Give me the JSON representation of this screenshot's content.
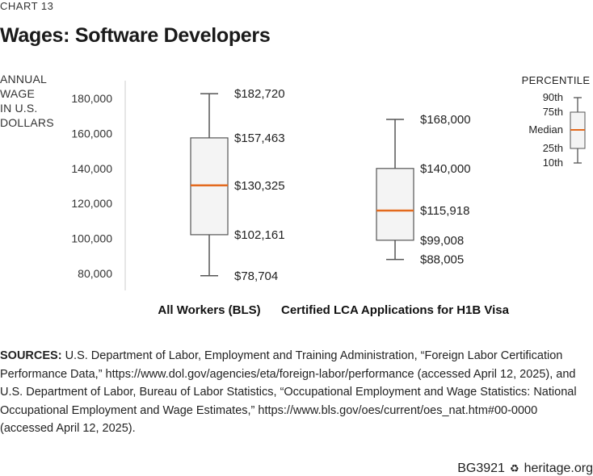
{
  "chart_number": "CHART 13",
  "footer": {
    "report_id": "BG3921",
    "site": "heritage.org",
    "logo_icon": "liberty-bell-icon"
  },
  "sources": {
    "label": "SOURCES:",
    "text": " U.S. Department of Labor, Employment and Training Administration, “Foreign Labor Certification Performance Data,” https://www.dol.gov/agencies/eta/foreign-labor/performance (accessed April 12, 2025), and U.S. Department of Labor, Bureau of Labor Statistics, “Occupational Employment and Wage Statistics: National Occupational Employment and Wage Estimates,” https://www.bls.gov/oes/current/oes_nat.htm#00-0000 (accessed April 12, 2025)."
  },
  "colors": {
    "median": "#e36a1e",
    "box_fill": "#f4f4f4",
    "box_stroke": "#555555",
    "axis": "#cccccc"
  },
  "chart_data": {
    "type": "boxplot",
    "title": "Wages: Software Developers",
    "ylabel_lines": [
      "ANNUAL",
      "WAGE",
      "IN U.S.",
      "DOLLARS"
    ],
    "ylim": [
      75000,
      190000
    ],
    "yticks": [
      80000,
      100000,
      120000,
      140000,
      160000,
      180000
    ],
    "ytick_labels": [
      "80,000",
      "100,000",
      "120,000",
      "140,000",
      "160,000",
      "180,000"
    ],
    "grid": false,
    "categories": [
      "All Workers (BLS)",
      "Certified LCA Applications for H1B Visa"
    ],
    "boxes": [
      {
        "category": "All Workers (BLS)",
        "p10": 78704,
        "p25": 102161,
        "median": 130325,
        "p75": 157463,
        "p90": 182720,
        "labels": {
          "p10": "$78,704",
          "p25": "$102,161",
          "median": "$130,325",
          "p75": "$157,463",
          "p90": "$182,720"
        }
      },
      {
        "category": "Certified LCA Applications for H1B Visa",
        "p10": 88005,
        "p25": 99008,
        "median": 115918,
        "p75": 140000,
        "p90": 168000,
        "labels": {
          "p10": "$88,005",
          "p25": "$99,008",
          "median": "$115,918",
          "p75": "$140,000",
          "p90": "$168,000"
        }
      }
    ],
    "legend": {
      "title": "PERCENTILE",
      "placement": "top-right",
      "labels": [
        "90th",
        "75th",
        "Median",
        "25th",
        "10th"
      ]
    }
  }
}
